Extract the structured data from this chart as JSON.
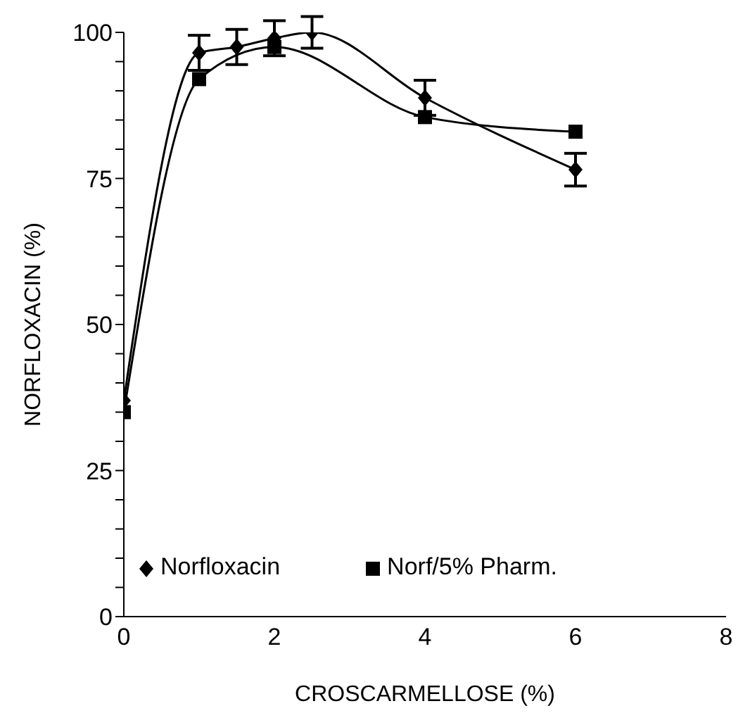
{
  "chart_data": {
    "type": "line",
    "xlabel": "CROSCARMELLOSE (%)",
    "ylabel": "NORFLOXACIN (%)",
    "xlim": [
      0,
      8
    ],
    "xticks": [
      0,
      2,
      4,
      6,
      8
    ],
    "ylim": [
      0,
      100
    ],
    "yticks": [
      0,
      {
        "value": 5,
        "label": null
      },
      {
        "value": 10,
        "label": null
      },
      {
        "value": 15,
        "label": null
      },
      {
        "value": 20,
        "label": null
      },
      25,
      {
        "value": 30,
        "label": null
      },
      {
        "value": 35,
        "label": null
      },
      {
        "value": 40,
        "label": null
      },
      {
        "value": 45,
        "label": null
      },
      50,
      {
        "value": 55,
        "label": null
      },
      {
        "value": 60,
        "label": null
      },
      {
        "value": 65,
        "label": null
      },
      {
        "value": 70,
        "label": null
      },
      75,
      {
        "value": 80,
        "label": null
      },
      {
        "value": 85,
        "label": null
      },
      {
        "value": 90,
        "label": null
      },
      {
        "value": 95,
        "label": null
      },
      100
    ],
    "grid": false,
    "legend": "bottom",
    "series": [
      {
        "name": "Norfloxacin",
        "color": "#000000",
        "marker": "diamond",
        "x": [
          0,
          1,
          1.5,
          2,
          2.5,
          4,
          6
        ],
        "values": [
          37,
          96.5,
          97.5,
          99,
          100,
          88.8,
          76.5
        ],
        "errors": [
          null,
          3,
          3,
          3,
          2.7,
          3,
          2.8
        ]
      },
      {
        "name": "Norf/5% Pharm.",
        "color": "#000000",
        "marker": "square",
        "x": [
          0,
          1,
          2,
          4,
          6
        ],
        "values": [
          35,
          92,
          97.5,
          85.5,
          83
        ]
      }
    ]
  }
}
